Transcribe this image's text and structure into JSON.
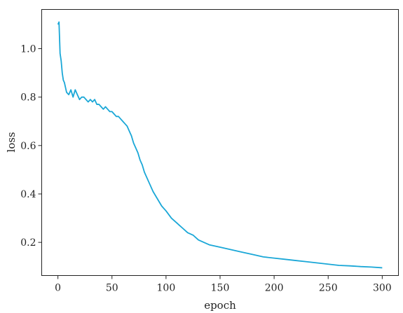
{
  "chart_data": {
    "type": "line",
    "title": "",
    "xlabel": "epoch",
    "ylabel": "loss",
    "xlim": [
      -15,
      315
    ],
    "ylim": [
      0.063,
      1.162
    ],
    "xticks": [
      0,
      50,
      100,
      150,
      200,
      250,
      300
    ],
    "yticks": [
      0.2,
      0.4,
      0.6,
      0.8,
      1.0
    ],
    "xtick_labels": [
      "0",
      "50",
      "100",
      "150",
      "200",
      "250",
      "300"
    ],
    "ytick_labels": [
      "0.2",
      "0.4",
      "0.6",
      "0.8",
      "1.0"
    ],
    "grid": false,
    "legend": "none",
    "series": [
      {
        "color": "#1aa7d7",
        "x": [
          0,
          1,
          2,
          3,
          4,
          5,
          6,
          7,
          8,
          10,
          12,
          14,
          16,
          18,
          20,
          22,
          24,
          26,
          28,
          30,
          32,
          34,
          36,
          38,
          40,
          42,
          44,
          46,
          48,
          50,
          52,
          54,
          56,
          58,
          60,
          62,
          64,
          66,
          68,
          70,
          72,
          74,
          76,
          78,
          80,
          84,
          88,
          92,
          96,
          100,
          105,
          110,
          115,
          120,
          125,
          130,
          140,
          150,
          160,
          170,
          180,
          190,
          200,
          210,
          220,
          230,
          240,
          250,
          260,
          270,
          280,
          290,
          300
        ],
        "y": [
          1.1,
          1.11,
          0.98,
          0.95,
          0.9,
          0.87,
          0.86,
          0.84,
          0.82,
          0.81,
          0.83,
          0.8,
          0.83,
          0.81,
          0.79,
          0.8,
          0.8,
          0.79,
          0.78,
          0.79,
          0.78,
          0.79,
          0.77,
          0.77,
          0.76,
          0.75,
          0.76,
          0.75,
          0.74,
          0.74,
          0.73,
          0.72,
          0.72,
          0.71,
          0.7,
          0.69,
          0.68,
          0.66,
          0.64,
          0.61,
          0.59,
          0.57,
          0.54,
          0.52,
          0.49,
          0.45,
          0.41,
          0.38,
          0.35,
          0.33,
          0.3,
          0.28,
          0.26,
          0.24,
          0.23,
          0.21,
          0.19,
          0.18,
          0.17,
          0.16,
          0.15,
          0.14,
          0.135,
          0.13,
          0.125,
          0.12,
          0.115,
          0.11,
          0.105,
          0.103,
          0.1,
          0.098,
          0.095
        ]
      }
    ]
  }
}
